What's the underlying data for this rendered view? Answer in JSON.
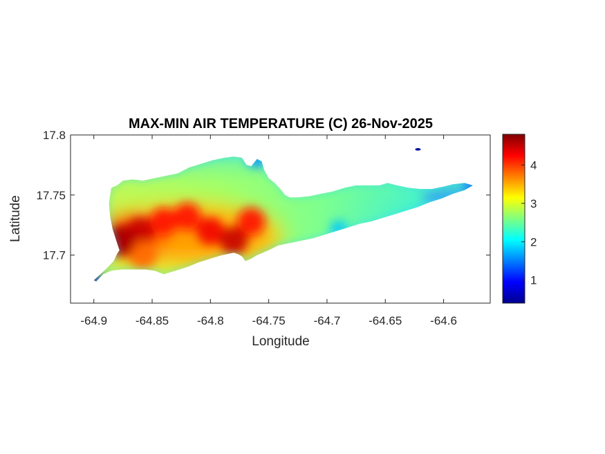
{
  "chart_data": {
    "type": "heatmap",
    "title": "MAX-MIN AIR TEMPERATURE (C) 26-Nov-2025",
    "xlabel": "Longitude",
    "ylabel": "Latitude",
    "xlim": [
      -64.92,
      -64.56
    ],
    "ylim": [
      17.66,
      17.8
    ],
    "x_ticks": [
      {
        "value": -64.9,
        "label": "-64.9"
      },
      {
        "value": -64.85,
        "label": "-64.85"
      },
      {
        "value": -64.8,
        "label": "-64.8"
      },
      {
        "value": -64.75,
        "label": "-64.75"
      },
      {
        "value": -64.7,
        "label": "-64.7"
      },
      {
        "value": -64.65,
        "label": "-64.65"
      },
      {
        "value": -64.6,
        "label": "-64.6"
      }
    ],
    "y_ticks": [
      {
        "value": 17.7,
        "label": "17.7"
      },
      {
        "value": 17.75,
        "label": "17.75"
      },
      {
        "value": 17.8,
        "label": "17.8"
      }
    ],
    "colorbar": {
      "colormap": "jet",
      "range": [
        0.4,
        4.8
      ],
      "ticks": [
        {
          "value": 1,
          "label": "1"
        },
        {
          "value": 2,
          "label": "2"
        },
        {
          "value": 3,
          "label": "3"
        },
        {
          "value": 4,
          "label": "4"
        }
      ]
    },
    "island_outline": [
      [
        -64.9,
        17.679
      ],
      [
        -64.89,
        17.688
      ],
      [
        -64.883,
        17.695
      ],
      [
        -64.88,
        17.701
      ],
      [
        -64.878,
        17.704
      ],
      [
        -64.88,
        17.71
      ],
      [
        -64.882,
        17.716
      ],
      [
        -64.884,
        17.722
      ],
      [
        -64.886,
        17.732
      ],
      [
        -64.887,
        17.743
      ],
      [
        -64.886,
        17.75
      ],
      [
        -64.885,
        17.756
      ],
      [
        -64.88,
        17.758
      ],
      [
        -64.875,
        17.762
      ],
      [
        -64.867,
        17.763
      ],
      [
        -64.858,
        17.762
      ],
      [
        -64.848,
        17.764
      ],
      [
        -64.838,
        17.766
      ],
      [
        -64.828,
        17.768
      ],
      [
        -64.818,
        17.773
      ],
      [
        -64.808,
        17.776
      ],
      [
        -64.798,
        17.779
      ],
      [
        -64.788,
        17.781
      ],
      [
        -64.78,
        17.782
      ],
      [
        -64.773,
        17.781
      ],
      [
        -64.769,
        17.775
      ],
      [
        -64.765,
        17.774
      ],
      [
        -64.76,
        17.78
      ],
      [
        -64.756,
        17.778
      ],
      [
        -64.754,
        17.771
      ],
      [
        -64.75,
        17.764
      ],
      [
        -64.745,
        17.76
      ],
      [
        -64.74,
        17.755
      ],
      [
        -64.736,
        17.75
      ],
      [
        -64.732,
        17.748
      ],
      [
        -64.725,
        17.748
      ],
      [
        -64.715,
        17.749
      ],
      [
        -64.705,
        17.751
      ],
      [
        -64.695,
        17.753
      ],
      [
        -64.685,
        17.756
      ],
      [
        -64.675,
        17.758
      ],
      [
        -64.665,
        17.758
      ],
      [
        -64.655,
        17.758
      ],
      [
        -64.648,
        17.76
      ],
      [
        -64.64,
        17.758
      ],
      [
        -64.63,
        17.756
      ],
      [
        -64.62,
        17.755
      ],
      [
        -64.61,
        17.755
      ],
      [
        -64.6,
        17.757
      ],
      [
        -64.592,
        17.759
      ],
      [
        -64.582,
        17.76
      ],
      [
        -64.575,
        17.758
      ],
      [
        -64.582,
        17.754
      ],
      [
        -64.592,
        17.751
      ],
      [
        -64.602,
        17.747
      ],
      [
        -64.612,
        17.744
      ],
      [
        -64.622,
        17.74
      ],
      [
        -64.632,
        17.737
      ],
      [
        -64.642,
        17.734
      ],
      [
        -64.652,
        17.731
      ],
      [
        -64.662,
        17.728
      ],
      [
        -64.672,
        17.726
      ],
      [
        -64.682,
        17.723
      ],
      [
        -64.692,
        17.72
      ],
      [
        -64.702,
        17.717
      ],
      [
        -64.712,
        17.714
      ],
      [
        -64.722,
        17.712
      ],
      [
        -64.732,
        17.71
      ],
      [
        -64.742,
        17.708
      ],
      [
        -64.748,
        17.705
      ],
      [
        -64.755,
        17.702
      ],
      [
        -64.76,
        17.7
      ],
      [
        -64.765,
        17.697
      ],
      [
        -64.77,
        17.695
      ],
      [
        -64.773,
        17.699
      ],
      [
        -64.777,
        17.701
      ],
      [
        -64.78,
        17.702
      ],
      [
        -64.79,
        17.7
      ],
      [
        -64.8,
        17.697
      ],
      [
        -64.81,
        17.694
      ],
      [
        -64.82,
        17.69
      ],
      [
        -64.83,
        17.687
      ],
      [
        -64.84,
        17.684
      ],
      [
        -64.848,
        17.687
      ],
      [
        -64.856,
        17.688
      ],
      [
        -64.866,
        17.688
      ],
      [
        -64.876,
        17.688
      ],
      [
        -64.885,
        17.687
      ],
      [
        -64.892,
        17.684
      ],
      [
        -64.898,
        17.678
      ]
    ],
    "islet": {
      "center": [
        -64.622,
        17.788
      ]
    },
    "hotspots": [
      {
        "lon": -64.878,
        "lat": 17.712,
        "value": 4.8
      },
      {
        "lon": -64.86,
        "lat": 17.72,
        "value": 4.5
      },
      {
        "lon": -64.84,
        "lat": 17.728,
        "value": 4.2
      },
      {
        "lon": -64.82,
        "lat": 17.732,
        "value": 4.2
      },
      {
        "lon": -64.8,
        "lat": 17.72,
        "value": 4.3
      },
      {
        "lon": -64.78,
        "lat": 17.712,
        "value": 4.5
      },
      {
        "lon": -64.765,
        "lat": 17.728,
        "value": 4.2
      },
      {
        "lon": -64.858,
        "lat": 17.7,
        "value": 3.8
      }
    ],
    "cool_spots": [
      {
        "lon": -64.9,
        "lat": 17.68,
        "value": 0.6
      },
      {
        "lon": -64.62,
        "lat": 17.789,
        "value": 0.5
      },
      {
        "lon": -64.575,
        "lat": 17.757,
        "value": 1.3
      },
      {
        "lon": -64.76,
        "lat": 17.78,
        "value": 1.5
      },
      {
        "lon": -64.69,
        "lat": 17.722,
        "value": 1.8
      }
    ]
  }
}
